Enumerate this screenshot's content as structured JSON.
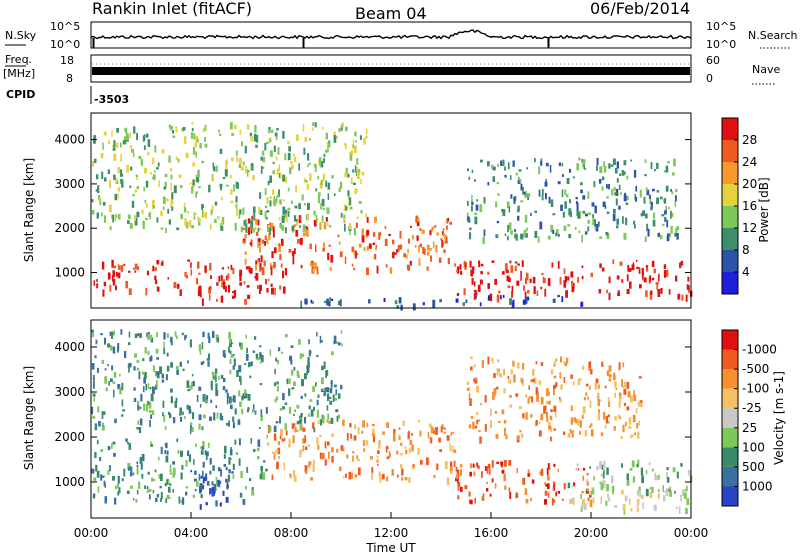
{
  "header": {
    "site": "Rankin Inlet (fitACF)",
    "beam": "Beam 04",
    "date": "06/Feb/2014"
  },
  "chart_data": [
    {
      "type": "line",
      "panel": "noise",
      "left_label": "N.Sky",
      "left_ticks": [
        "10^5",
        "10^0"
      ],
      "right_label": "N.Search",
      "right_ticks": [
        "10^5",
        "10^0"
      ],
      "note": "noise level lines across the full day"
    },
    {
      "type": "line",
      "panel": "frequency",
      "left_label_lines": [
        "Freq.",
        "[MHz]"
      ],
      "left_ticks": [
        "18",
        "8"
      ],
      "right_label": "Nave",
      "right_ticks": [
        "60",
        "0"
      ]
    },
    {
      "type": "table",
      "panel": "cpid",
      "label": "CPID",
      "value": "-3503"
    },
    {
      "type": "heatmap",
      "panel": "power",
      "ylabel": "Slant Range [km]",
      "ylim": [
        200,
        4600
      ],
      "yticks": [
        "1000",
        "2000",
        "3000",
        "4000"
      ],
      "colorbar_label": "Power [dB]",
      "colorbar_ticks": [
        "4",
        "8",
        "12",
        "16",
        "20",
        "24",
        "28"
      ],
      "colors": [
        "#1d20d8",
        "#2b54a8",
        "#3c8f6a",
        "#7ec85a",
        "#e6d23a",
        "#f59a2a",
        "#f05a20",
        "#e01010"
      ],
      "bands": [
        {
          "t": [
            0,
            8
          ],
          "r": [
            600,
            1300
          ],
          "level": 7
        },
        {
          "t": [
            4,
            6.5
          ],
          "r": [
            400,
            800
          ],
          "level": 7
        },
        {
          "t": [
            6,
            14.5
          ],
          "r": [
            1100,
            2300
          ],
          "level": 6
        },
        {
          "t": [
            14.5,
            24
          ],
          "r": [
            500,
            1300
          ],
          "level": 7
        },
        {
          "t": [
            0,
            11
          ],
          "r": [
            2000,
            4400
          ],
          "level": 3
        },
        {
          "t": [
            15,
            23.5
          ],
          "r": [
            1800,
            3600
          ],
          "level": 2
        },
        {
          "t": [
            14.5,
            20
          ],
          "r": [
            300,
            500
          ],
          "level": 1
        },
        {
          "t": [
            8,
            14
          ],
          "r": [
            250,
            450
          ],
          "level": 1
        }
      ]
    },
    {
      "type": "heatmap",
      "panel": "velocity",
      "ylabel": "Slant Range [km]",
      "ylim": [
        200,
        4600
      ],
      "yticks": [
        "1000",
        "2000",
        "3000",
        "4000"
      ],
      "colorbar_label": "Velocity [m s-1]",
      "colorbar_ticks": [
        "1000",
        "500",
        "100",
        "25",
        "-25",
        "-100",
        "-500",
        "-1000"
      ],
      "colors": [
        "#2a44c8",
        "#3a70a0",
        "#3a8a6a",
        "#7cc858",
        "#c8c8c8",
        "#f5c060",
        "#f59030",
        "#f05a20",
        "#e01010"
      ],
      "bands": [
        {
          "t": [
            0,
            7
          ],
          "r": [
            600,
            2000
          ],
          "level": 2
        },
        {
          "t": [
            3.5,
            5.5
          ],
          "r": [
            500,
            1300
          ],
          "level": 0
        },
        {
          "t": [
            7,
            14.5
          ],
          "r": [
            1100,
            2400
          ],
          "level": 6
        },
        {
          "t": [
            14.5,
            20
          ],
          "r": [
            600,
            1500
          ],
          "level": 7
        },
        {
          "t": [
            19,
            24
          ],
          "r": [
            800,
            1500
          ],
          "level": 3
        },
        {
          "t": [
            19,
            24
          ],
          "r": [
            400,
            900
          ],
          "level": 4
        },
        {
          "t": [
            0,
            10
          ],
          "r": [
            2200,
            4400
          ],
          "level": 2
        },
        {
          "t": [
            15,
            22
          ],
          "r": [
            2000,
            3800
          ],
          "level": 6
        }
      ]
    }
  ],
  "xaxis": {
    "label": "Time UT",
    "ticks": [
      "00:00",
      "04:00",
      "08:00",
      "12:00",
      "16:00",
      "20:00",
      "00:00"
    ]
  }
}
